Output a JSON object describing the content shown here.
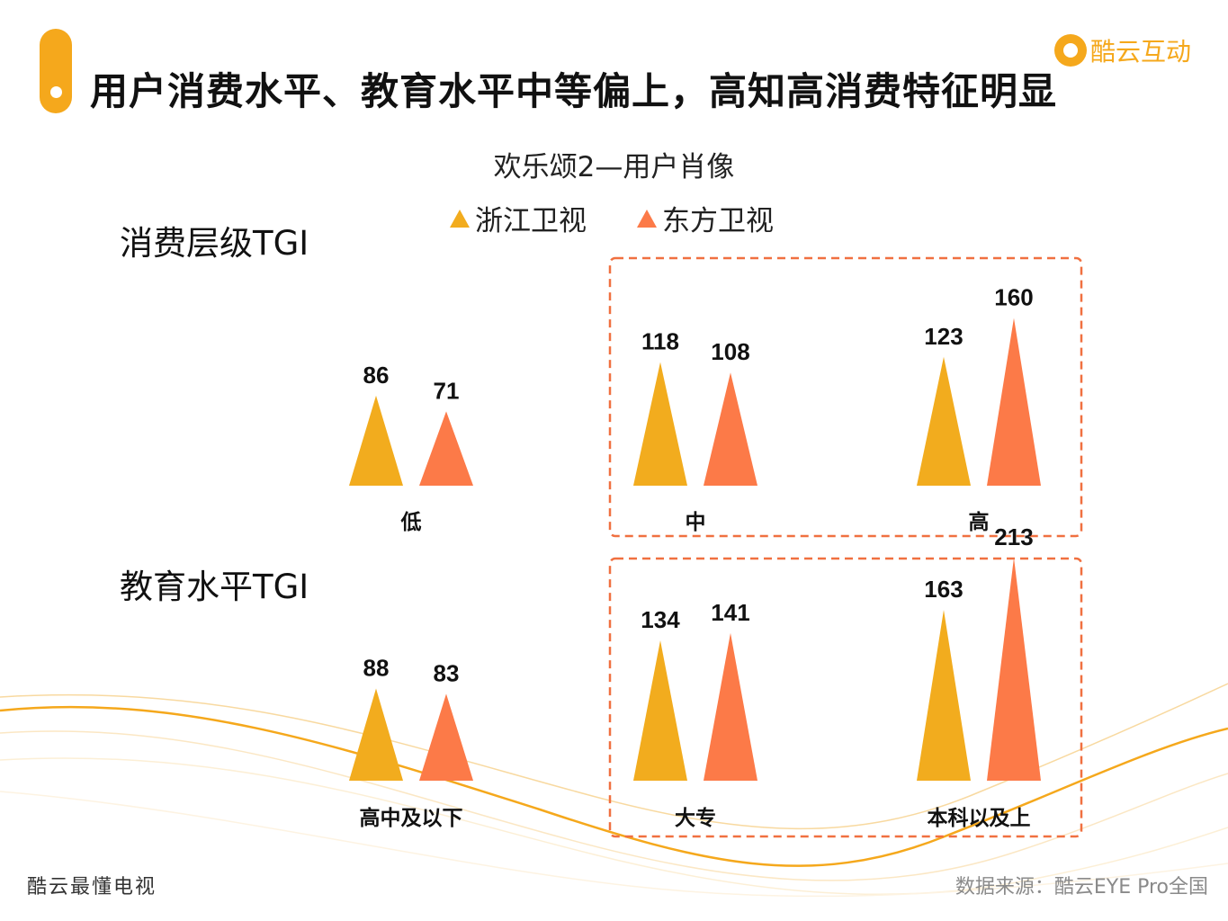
{
  "header": {
    "title": "用户消费水平、教育水平中等偏上，高知高消费特征明显",
    "logo_text": "酷云互动"
  },
  "chart_data": {
    "type": "bar",
    "title": "欢乐颂2—用户肖像",
    "series_colors": {
      "浙江卫视": "#F2AC1E",
      "东方卫视": "#FC7A48"
    },
    "legend": [
      "浙江卫视",
      "东方卫视"
    ],
    "panels": [
      {
        "name": "消费层级TGI",
        "categories": [
          "低",
          "中",
          "高"
        ],
        "series": [
          {
            "name": "浙江卫视",
            "values": [
              86,
              118,
              123
            ]
          },
          {
            "name": "东方卫视",
            "values": [
              71,
              108,
              160
            ]
          }
        ],
        "highlighted_categories": [
          "中",
          "高"
        ]
      },
      {
        "name": "教育水平TGI",
        "categories": [
          "高中及以下",
          "大专",
          "本科以及上"
        ],
        "series": [
          {
            "name": "浙江卫视",
            "values": [
              88,
              134,
              163
            ]
          },
          {
            "name": "东方卫视",
            "values": [
              83,
              141,
              213
            ]
          }
        ],
        "highlighted_categories": [
          "大专",
          "本科以及上"
        ]
      }
    ]
  },
  "footer": {
    "left": "酷云最懂电视",
    "source": "数据来源：酷云EYE Pro全国"
  }
}
